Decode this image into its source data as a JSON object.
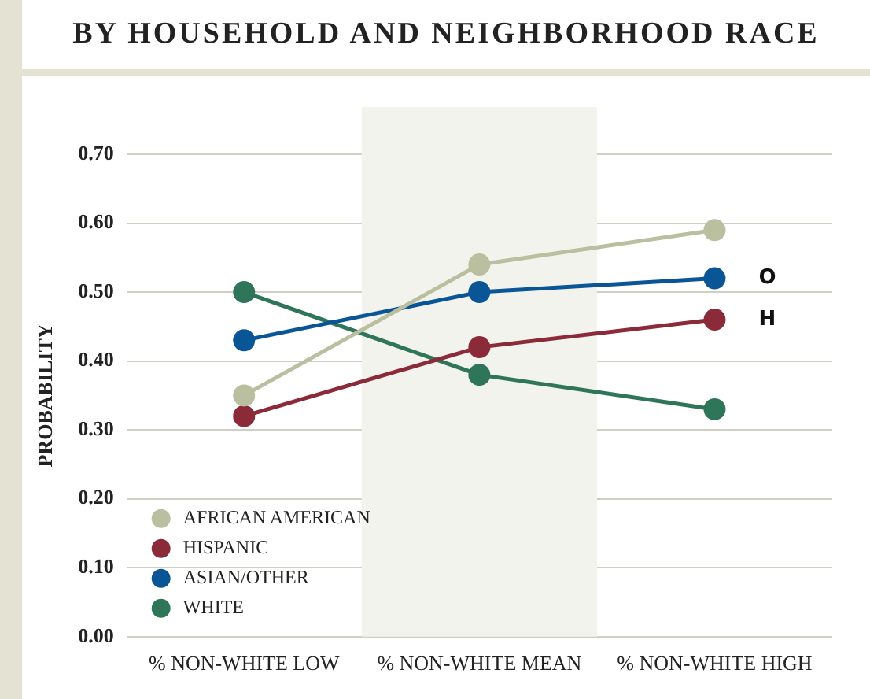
{
  "chart_data": {
    "type": "line",
    "title": "BY HOUSEHOLD AND NEIGHBORHOOD RACE",
    "ylabel": "PROBABILITY",
    "categories": [
      "% NON-WHITE LOW",
      "% NON-WHITE MEAN",
      "% NON-WHITE HIGH"
    ],
    "series": [
      {
        "name": "AFRICAN AMERICAN",
        "color": "#b9bf9f",
        "values": [
          0.35,
          0.54,
          0.59
        ]
      },
      {
        "name": "HISPANIC",
        "color": "#8b2b3a",
        "values": [
          0.32,
          0.42,
          0.46
        ]
      },
      {
        "name": "ASIAN/OTHER",
        "color": "#0a5596",
        "values": [
          0.43,
          0.5,
          0.52
        ]
      },
      {
        "name": "WHITE",
        "color": "#2e7559",
        "values": [
          0.5,
          0.38,
          0.33
        ]
      }
    ],
    "annotations": [
      {
        "text": "O",
        "x": "% NON-WHITE HIGH",
        "y": 0.52
      },
      {
        "text": "H",
        "x": "% NON-WHITE HIGH",
        "y": 0.46
      }
    ],
    "bands": [
      {
        "axis": "x",
        "from": "% NON-WHITE MEAN",
        "to": "% NON-WHITE MEAN",
        "color": "#f3f3ee"
      }
    ],
    "ylim": [
      0,
      0.7
    ],
    "yticks": [
      {
        "value": 0,
        "label": "0.00"
      },
      {
        "value": 0.1,
        "label": "0.10"
      },
      {
        "value": 0.2,
        "label": "0.20"
      },
      {
        "value": 0.3,
        "label": "0.30"
      },
      {
        "value": 0.4,
        "label": "0.40"
      },
      {
        "value": 0.5,
        "label": "0.50"
      },
      {
        "value": 0.6,
        "label": "0.60"
      },
      {
        "value": 0.7,
        "label": "0.70"
      }
    ],
    "grid": "y",
    "legend": "bottom left",
    "marker": "circle",
    "line_style": "solid"
  }
}
